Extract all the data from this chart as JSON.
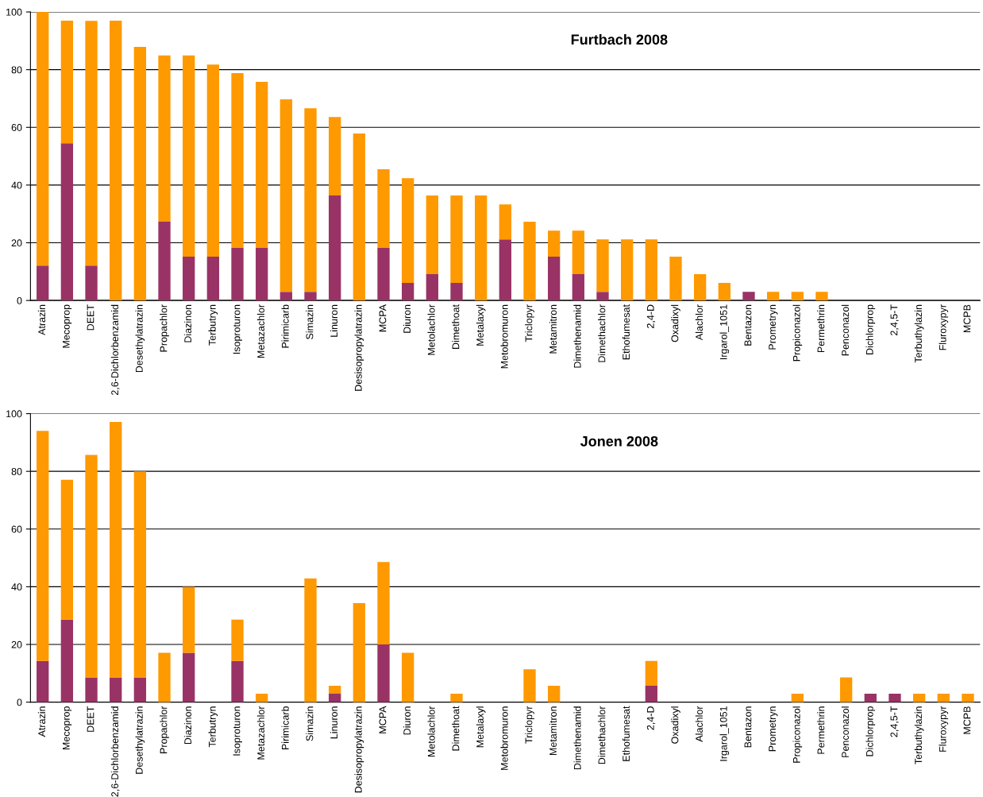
{
  "chart_data": [
    {
      "type": "bar",
      "title": "Furtbach 2008",
      "stacked": true,
      "grid": "y",
      "ylim": [
        0,
        100
      ],
      "yticks": [
        0,
        20,
        40,
        60,
        80,
        100
      ],
      "categories": [
        "Atrazin",
        "Mecoprop",
        "DEET",
        "2,6-Dichlorbenzamid",
        "Desethylatrazin",
        "Propachlor",
        "Diazinon",
        "Terbutryn",
        "Isoproturon",
        "Metazachlor",
        "Pirimicarb",
        "Simazin",
        "Linuron",
        "Desisopropylatrazin",
        "MCPA",
        "Diuron",
        "Metolachlor",
        "Dimethoat",
        "Metalaxyl",
        "Metobromuron",
        "Triclopyr",
        "Metamitron",
        "Dimethenamid",
        "Dimethachlor",
        "Ethofumesat",
        "2,4-D",
        "Oxadixyl",
        "Alachlor",
        "Irgarol_1051",
        "Bentazon",
        "Prometryn",
        "Propiconazol",
        "Permethrin",
        "Penconazol",
        "Dichlorprop",
        "2,4,5-T",
        "Terbuthylazin",
        "Fluroxypyr",
        "MCPB"
      ],
      "series": [
        {
          "color": "#993366",
          "values": [
            12.1,
            54.5,
            12.1,
            0,
            0,
            27.3,
            15.2,
            15.2,
            18.2,
            18.2,
            3,
            3,
            36.4,
            0,
            18.2,
            6.1,
            9.1,
            6.1,
            0,
            21.2,
            0,
            15.2,
            9.1,
            3,
            0,
            0,
            0,
            0,
            0,
            3,
            0,
            0,
            0,
            0,
            0,
            0,
            0,
            0,
            0
          ]
        },
        {
          "color": "#ff9900",
          "values": [
            87.9,
            42.5,
            84.8,
            97,
            87.9,
            57.6,
            69.7,
            66.6,
            60.6,
            57.6,
            66.7,
            63.6,
            27.2,
            57.9,
            27.3,
            36.3,
            27.3,
            30.3,
            36.4,
            12.1,
            27.3,
            9,
            15.1,
            18.2,
            21.2,
            21.2,
            15.2,
            9.1,
            6.1,
            0,
            3,
            3,
            3,
            0,
            0,
            0,
            0,
            0,
            0
          ]
        }
      ]
    },
    {
      "type": "bar",
      "title": "Jonen 2008",
      "stacked": true,
      "grid": "y",
      "ylim": [
        0,
        100
      ],
      "yticks": [
        0,
        20,
        40,
        60,
        80,
        100
      ],
      "categories": [
        "Atrazin",
        "Mecoprop",
        "DEET",
        "2,6-Dichlorbenzamid",
        "Desethylatrazin",
        "Propachlor",
        "Diazinon",
        "Terbutryn",
        "Isoproturon",
        "Metazachlor",
        "Pirimicarb",
        "Simazin",
        "Linuron",
        "Desisopropylatrazin",
        "MCPA",
        "Diuron",
        "Metolachlor",
        "Dimethoat",
        "Metalaxyl",
        "Metobromuron",
        "Triclopyr",
        "Metamitron",
        "Dimethenamid",
        "Dimethachlor",
        "Ethofumesat",
        "2,4-D",
        "Oxadixyl",
        "Alachlor",
        "Irgarol_1051",
        "Bentazon",
        "Prometryn",
        "Propiconazol",
        "Permethrin",
        "Penconazol",
        "Dichlorprop",
        "2,4,5-T",
        "Terbuthylazin",
        "Fluroxypyr",
        "MCPB"
      ],
      "series": [
        {
          "color": "#993366",
          "values": [
            14.3,
            28.6,
            8.6,
            8.6,
            8.6,
            0,
            17.1,
            0,
            14.3,
            0,
            0,
            0,
            2.9,
            0,
            20,
            0,
            0,
            0,
            0,
            0,
            0,
            0,
            0,
            0,
            0,
            5.7,
            0,
            0,
            0,
            0,
            0,
            0,
            0,
            0,
            2.9,
            2.9,
            0,
            0,
            0
          ]
        },
        {
          "color": "#ff9900",
          "values": [
            79.7,
            48.5,
            77.1,
            88.5,
            71.4,
            17.1,
            22.9,
            0,
            14.3,
            2.9,
            0,
            42.9,
            2.8,
            34.3,
            28.6,
            17.1,
            0,
            2.9,
            0,
            0,
            11.4,
            5.7,
            0,
            0,
            0,
            8.6,
            0,
            0,
            0,
            0,
            0,
            2.9,
            0,
            8.6,
            0,
            0,
            2.9,
            2.9,
            2.9
          ]
        }
      ]
    }
  ]
}
